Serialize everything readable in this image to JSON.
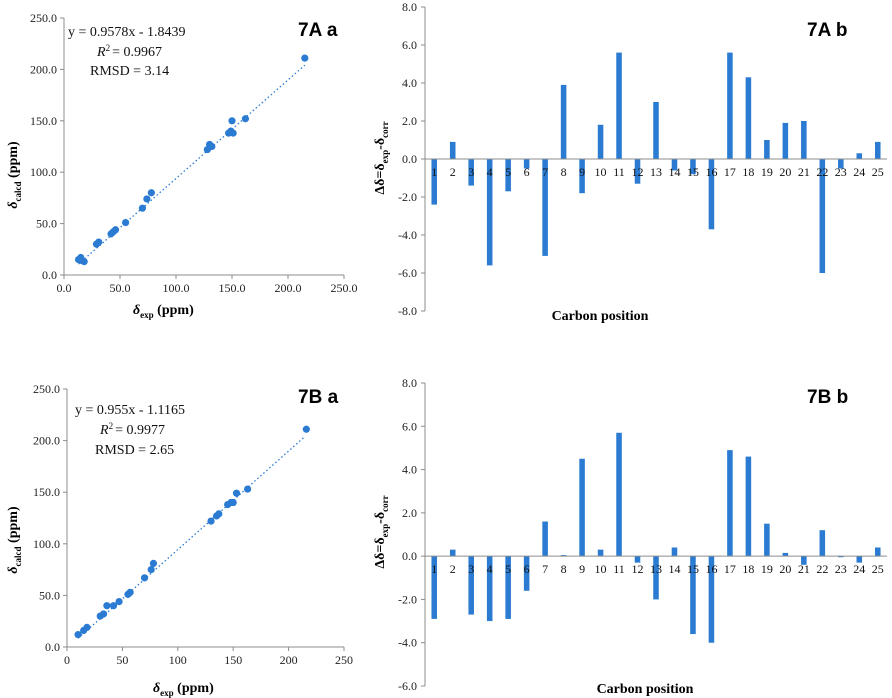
{
  "colors": {
    "series": "#2a7bd1",
    "axis": "#8c8c8c"
  },
  "chart_data": [
    {
      "id": "7Aa",
      "type": "scatter",
      "panel_label": "7A a",
      "xlabel": {
        "symbol": "δ",
        "sub": "exp",
        "unit": " (ppm)"
      },
      "ylabel": {
        "symbol": "δ",
        "sub": "calcd",
        "unit": " (ppm)"
      },
      "xlim": [
        0,
        250
      ],
      "ylim": [
        0,
        250
      ],
      "xticks": [
        0,
        50,
        100,
        150,
        200,
        250
      ],
      "yticks": [
        0,
        50,
        100,
        150,
        200,
        250
      ],
      "xtick_labels": [
        "0.0",
        "50.0",
        "100.0",
        "150.0",
        "200.0",
        "250.0"
      ],
      "ytick_labels": [
        "0.0",
        "50.0",
        "100.0",
        "150.0",
        "200.0",
        "250.0"
      ],
      "equation": "y = 0.9578x - 1.8439",
      "r2_label": "R",
      "r2_value": "= 0.9967",
      "rmsd": "RMSD = 3.14",
      "trendline": {
        "slope": 0.9578,
        "intercept": -1.8439,
        "x_range": [
          13,
          215
        ]
      },
      "x": [
        13,
        15,
        16,
        18,
        29,
        31,
        42,
        44,
        46,
        55,
        70,
        74,
        78,
        128,
        130,
        132,
        147,
        149,
        151,
        150,
        162,
        215
      ],
      "y": [
        15,
        17,
        14,
        13,
        30,
        32,
        40,
        42,
        44,
        51,
        65,
        74,
        80,
        122,
        127,
        125,
        138,
        140,
        138,
        150,
        152,
        211
      ]
    },
    {
      "id": "7Ab",
      "type": "bar",
      "panel_label": "7A b",
      "xlabel": "Carbon position",
      "ylabel_text": "Δδ=δ",
      "ylabel_sub1": "exp",
      "ylabel_mid": "-δ",
      "ylabel_sub2": "corr",
      "ylim": [
        -8,
        8
      ],
      "yticks": [
        -8,
        -6,
        -4,
        -2,
        0,
        2,
        4,
        6,
        8
      ],
      "ytick_labels": [
        "-8.0",
        "-6.0",
        "-4.0",
        "-2.0",
        "0.0",
        "2.0",
        "4.0",
        "6.0",
        "8.0"
      ],
      "categories": [
        "1",
        "2",
        "3",
        "4",
        "5",
        "6",
        "7",
        "8",
        "9",
        "10",
        "11",
        "12",
        "13",
        "14",
        "15",
        "16",
        "17",
        "18",
        "19",
        "20",
        "21",
        "22",
        "23",
        "24",
        "25"
      ],
      "values": [
        -2.4,
        0.9,
        -1.4,
        -5.6,
        -1.7,
        -0.5,
        -5.1,
        3.9,
        -1.8,
        1.8,
        5.6,
        -1.3,
        3.0,
        -0.6,
        -0.8,
        -3.7,
        5.6,
        4.3,
        1.0,
        1.9,
        2.0,
        -6.0,
        -0.5,
        0.3,
        0.9
      ]
    },
    {
      "id": "7Ba",
      "type": "scatter",
      "panel_label": "7B a",
      "xlabel": {
        "symbol": "δ",
        "sub": "exp",
        "unit": " (ppm)"
      },
      "ylabel": {
        "symbol": "δ",
        "sub": "calcd",
        "unit": " (ppm)"
      },
      "xlim": [
        0,
        250
      ],
      "ylim": [
        0,
        250
      ],
      "xticks": [
        0,
        50,
        100,
        150,
        200,
        250
      ],
      "yticks": [
        0,
        50,
        100,
        150,
        200,
        250
      ],
      "xtick_labels": [
        "0",
        "50",
        "100",
        "150",
        "200",
        "250"
      ],
      "ytick_labels": [
        "0.0",
        "50.0",
        "100.0",
        "150.0",
        "200.0",
        "250.0"
      ],
      "equation": "y = 0.955x - 1.1165",
      "r2_label": "R",
      "r2_value": "= 0.9977",
      "rmsd": "RMSD = 2.65",
      "trendline": {
        "slope": 0.955,
        "intercept": -1.1165,
        "x_range": [
          10,
          215
        ]
      },
      "x": [
        10,
        15,
        18,
        30,
        33,
        36,
        42,
        47,
        55,
        57,
        70,
        76,
        78,
        130,
        135,
        137,
        145,
        148,
        150,
        153,
        163,
        216
      ],
      "y": [
        12,
        16,
        19,
        30,
        32,
        40,
        40,
        44,
        51,
        53,
        67,
        75,
        81,
        122,
        127,
        129,
        138,
        140,
        140,
        149,
        153,
        211
      ]
    },
    {
      "id": "7Bb",
      "type": "bar",
      "panel_label": "7B b",
      "xlabel": "Carbon position",
      "ylabel_text": "Δδ=δ",
      "ylabel_sub1": "exp",
      "ylabel_mid": "-δ",
      "ylabel_sub2": "corr",
      "ylim": [
        -6,
        8
      ],
      "yticks": [
        -6,
        -4,
        -2,
        0,
        2,
        4,
        6,
        8
      ],
      "ytick_labels": [
        "-6.0",
        "-4.0",
        "-2.0",
        "0.0",
        "2.0",
        "4.0",
        "6.0",
        "8.0"
      ],
      "categories": [
        "1",
        "2",
        "3",
        "4",
        "5",
        "6",
        "7",
        "8",
        "9",
        "10",
        "11",
        "12",
        "13",
        "14",
        "15",
        "16",
        "17",
        "18",
        "19",
        "20",
        "21",
        "22",
        "23",
        "24",
        "25"
      ],
      "values": [
        -2.9,
        0.3,
        -2.7,
        -3.0,
        -2.9,
        -1.6,
        1.6,
        0.05,
        4.5,
        0.3,
        5.7,
        -0.3,
        -2.0,
        0.4,
        -3.6,
        -4.0,
        4.9,
        4.6,
        1.5,
        0.15,
        -0.4,
        1.2,
        -0.05,
        -0.3,
        0.4
      ]
    }
  ]
}
